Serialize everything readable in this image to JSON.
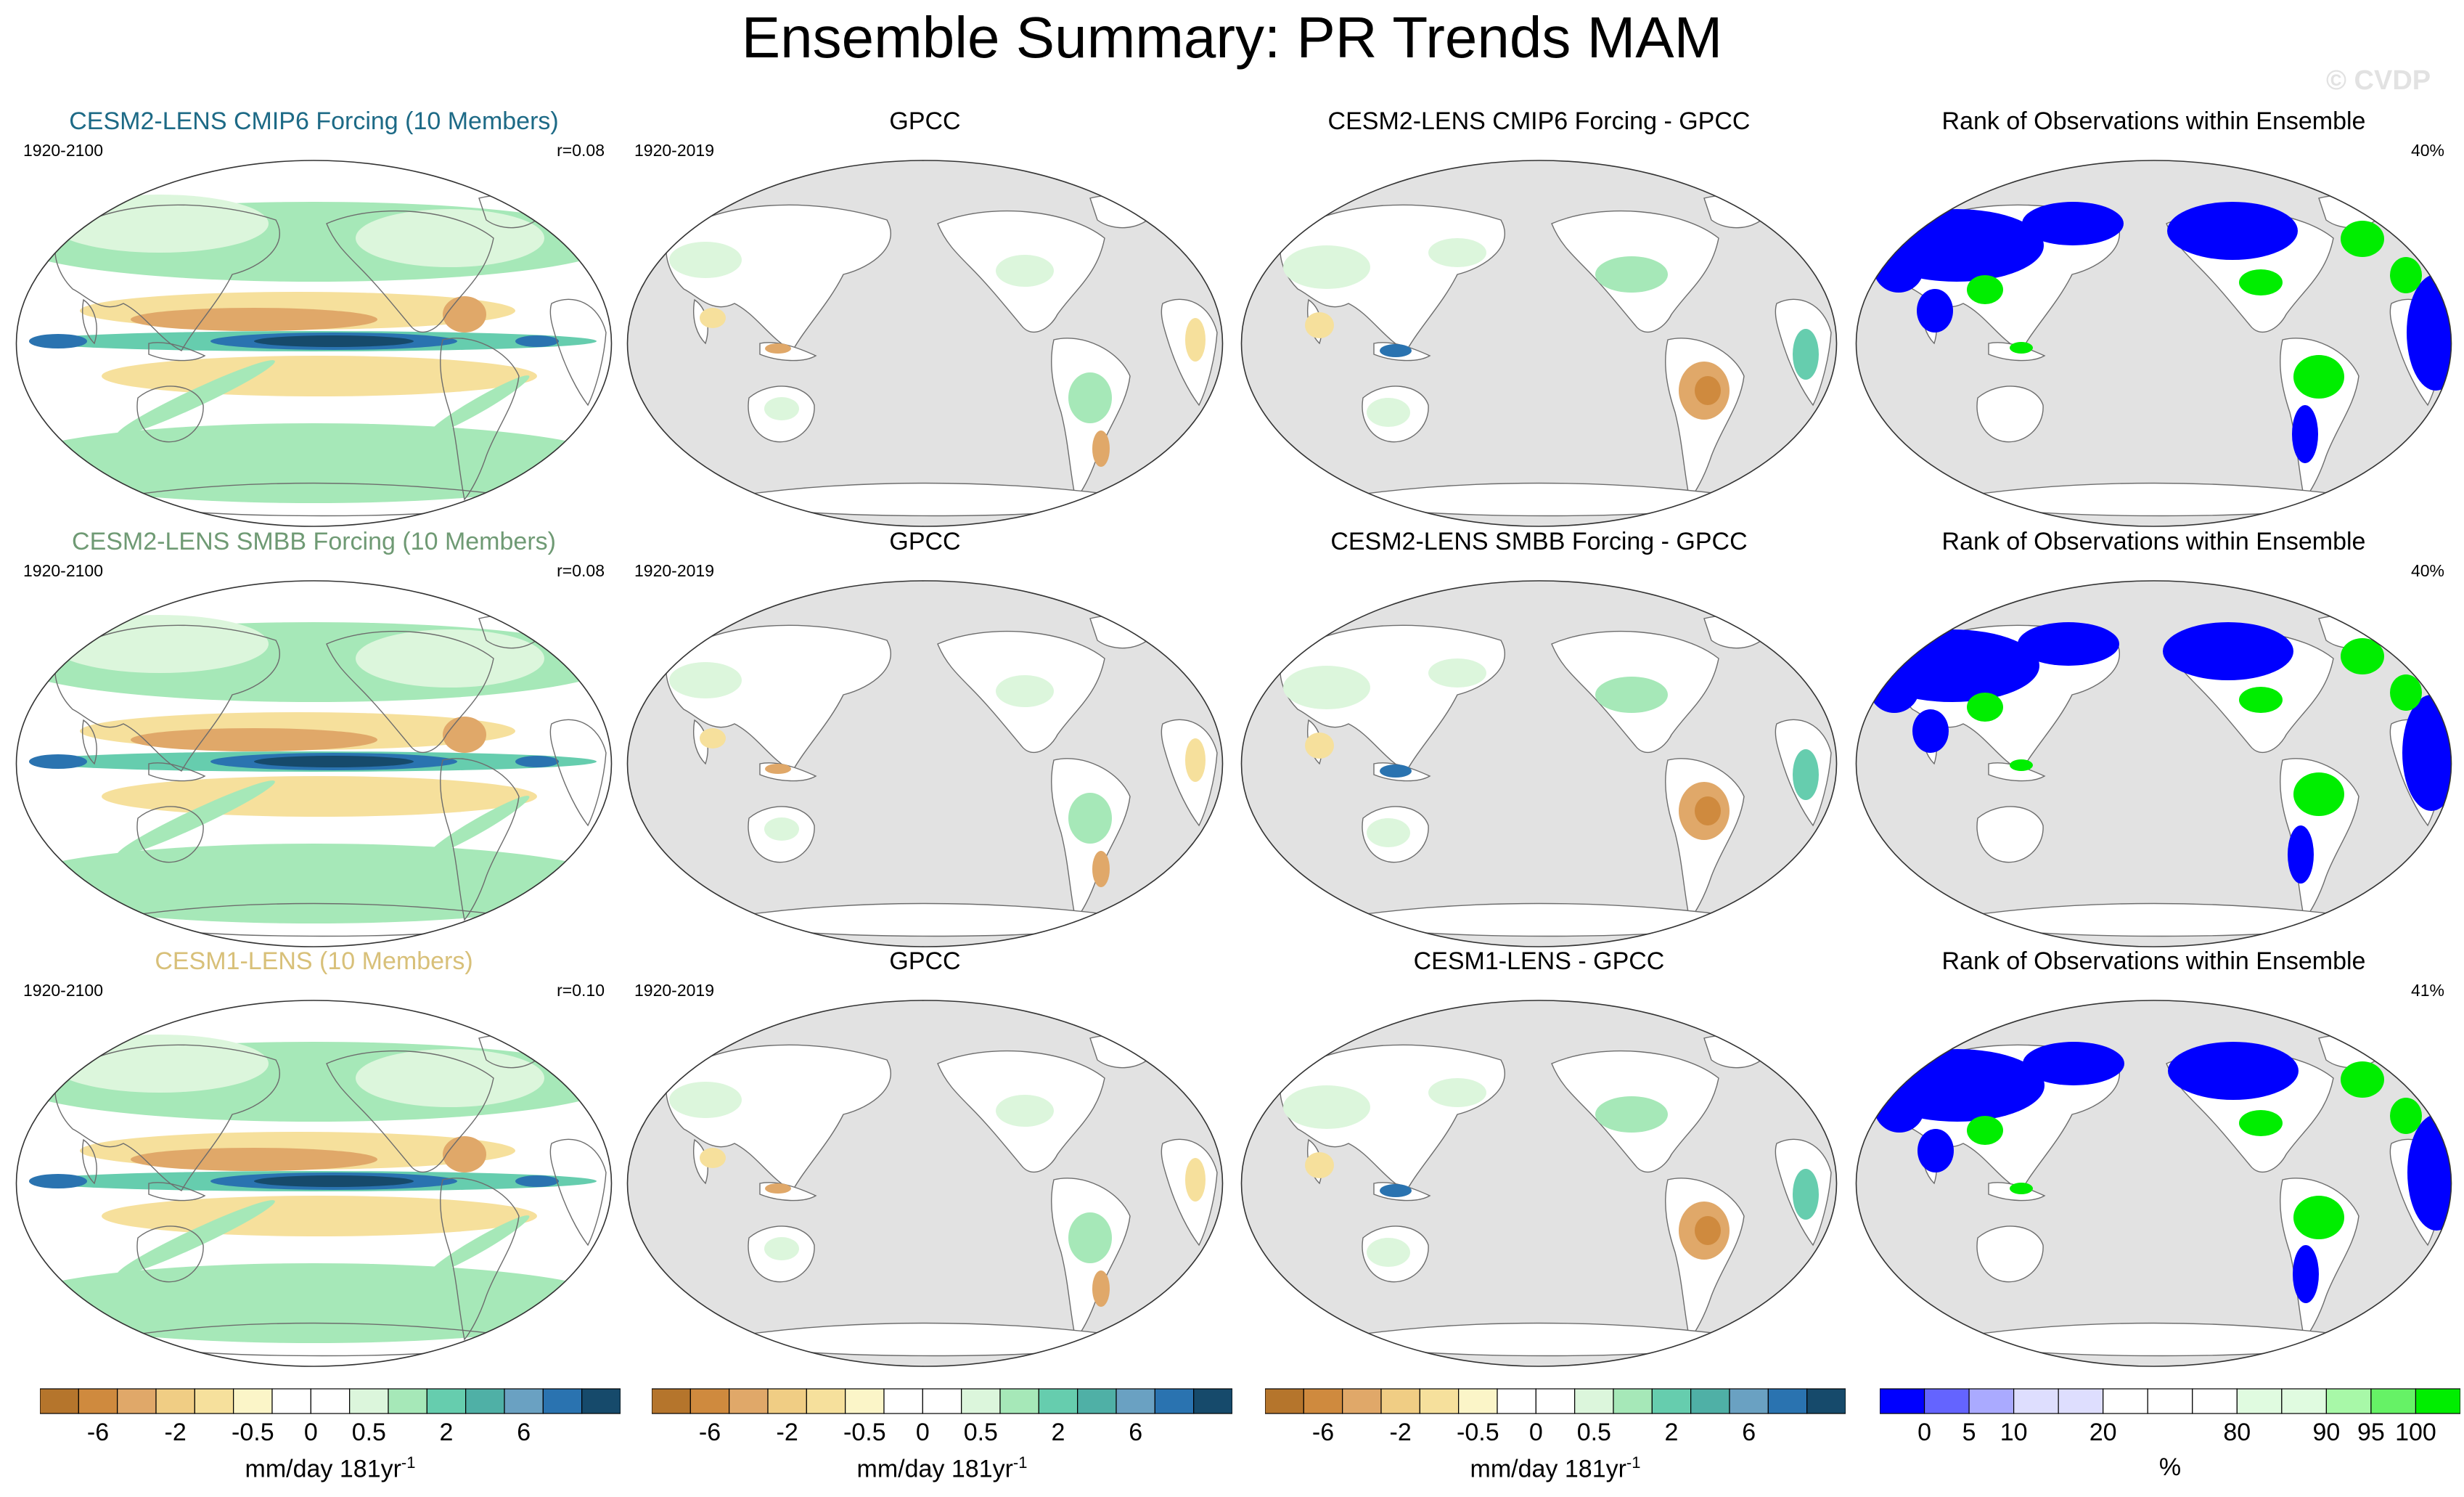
{
  "title": "Ensemble Summary: PR Trends MAM",
  "watermark": "© CVDP",
  "rows": [
    {
      "model_title": "CESM2-LENS CMIP6 Forcing (10 Members)",
      "model_color": "#1d6a86",
      "model_period": "1920-2100",
      "model_r": "r=0.08",
      "obs_title": "GPCC",
      "obs_period": "1920-2019",
      "diff_title": "CESM2-LENS CMIP6 Forcing - GPCC",
      "rank_title": "Rank of Observations within Ensemble",
      "rank_pct": "40%"
    },
    {
      "model_title": "CESM2-LENS SMBB Forcing (10 Members)",
      "model_color": "#6f9a74",
      "model_period": "1920-2100",
      "model_r": "r=0.08",
      "obs_title": "GPCC",
      "obs_period": "1920-2019",
      "diff_title": "CESM2-LENS SMBB Forcing - GPCC",
      "rank_title": "Rank of Observations within Ensemble",
      "rank_pct": "40%"
    },
    {
      "model_title": "CESM1-LENS (10 Members)",
      "model_color": "#d8c079",
      "model_period": "1920-2100",
      "model_r": "r=0.10",
      "obs_title": "GPCC",
      "obs_period": "1920-2019",
      "diff_title": "CESM1-LENS - GPCC",
      "rank_title": "Rank of Observations within Ensemble",
      "rank_pct": "41%"
    }
  ],
  "colorbars": {
    "trend": {
      "colors": [
        "#b5752c",
        "#cf8a3e",
        "#e0a869",
        "#f0cd84",
        "#f6e09c",
        "#fbf5c8",
        "#ffffff",
        "#ffffff",
        "#dcf6dc",
        "#a6e8b8",
        "#66cdae",
        "#4fb0a6",
        "#6aa1c2",
        "#2a73b0",
        "#164a6b"
      ],
      "ticks": [
        "-6",
        "-2",
        "-0.5",
        "0",
        "0.5",
        "2",
        "6"
      ],
      "tick_positions": [
        1.5,
        3.5,
        5.5,
        7,
        8.5,
        10.5,
        12.5
      ],
      "unit": "mm/day 181yr",
      "unit_exp": "-1"
    },
    "rank": {
      "colors": [
        "#0000ff",
        "#6464ff",
        "#aaaaff",
        "#dedefe",
        "#dedefe",
        "#ffffff",
        "#ffffff",
        "#ffffff",
        "#e0fbe0",
        "#e0fbe0",
        "#a8f8a8",
        "#66f266",
        "#00ee00"
      ],
      "ticks": [
        "0",
        "5",
        "10",
        "20",
        "80",
        "90",
        "95",
        "100"
      ],
      "tick_positions": [
        1,
        2,
        3,
        5,
        8,
        10,
        11,
        12
      ],
      "unit": "%"
    }
  },
  "map_colors": {
    "land": "#ffffff",
    "ocean_obs": "#e2e2e2",
    "green_light": "#dcf6dc",
    "green_mid": "#a6e8b8",
    "teal": "#66cdae",
    "blue_mid": "#2a73b0",
    "blue_dark": "#164a6b",
    "tan_light": "#f6e09c",
    "tan": "#e0a869",
    "brown": "#cf8a3e",
    "rank_blue": "#0000ff",
    "rank_green": "#00ee00"
  }
}
